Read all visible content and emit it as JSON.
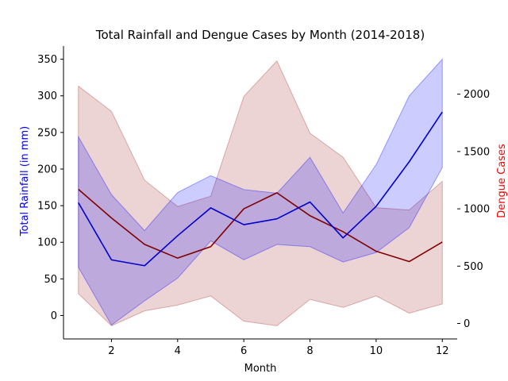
{
  "chart_data": {
    "type": "line",
    "title": "Total Rainfall and Dengue Cases by Month (2014-2018)",
    "xlabel": "Month",
    "ylabel": "Total Rainfall (in mm)",
    "y2label": "Dengue Cases",
    "xlim": [
      0.55,
      12.45
    ],
    "ylim": [
      -32,
      368
    ],
    "y2lim": [
      -135,
      2420
    ],
    "x_ticks": [
      2,
      4,
      6,
      8,
      10,
      12
    ],
    "y_ticks": [
      0,
      50,
      100,
      150,
      200,
      250,
      300,
      350
    ],
    "y2_ticks": [
      0,
      500,
      1000,
      1500,
      2000
    ],
    "grid": false,
    "colors": {
      "rainfall_line": "#0000cc",
      "rainfall_band": "#0000ff",
      "dengue_line": "#800000",
      "dengue_band": "#a52a2a",
      "ylabel": "#0000ff",
      "y2label": "#ff0000"
    },
    "series": [
      {
        "axis": "left",
        "x": [
          1,
          2,
          3,
          4,
          5,
          6,
          7,
          8,
          9,
          10,
          11,
          12
        ],
        "values": [
          154,
          76,
          68,
          109,
          147,
          124,
          132,
          155,
          106,
          149,
          210,
          278
        ],
        "band_upper": [
          244,
          165,
          116,
          168,
          191,
          172,
          167,
          216,
          140,
          206,
          300,
          350
        ],
        "band_lower": [
          66,
          -13,
          20,
          51,
          102,
          76,
          97,
          94,
          73,
          86,
          120,
          202
        ]
      },
      {
        "axis": "right",
        "x": [
          1,
          2,
          3,
          4,
          5,
          6,
          7,
          8,
          9,
          10,
          11,
          12
        ],
        "values": [
          1170,
          920,
          690,
          570,
          670,
          1000,
          1140,
          940,
          800,
          630,
          540,
          710
        ],
        "band_upper": [
          2070,
          1850,
          1250,
          1020,
          1110,
          1980,
          2290,
          1660,
          1450,
          1010,
          990,
          1240
        ],
        "band_lower": [
          260,
          -20,
          110,
          160,
          240,
          20,
          -20,
          210,
          140,
          240,
          90,
          170
        ]
      }
    ]
  }
}
